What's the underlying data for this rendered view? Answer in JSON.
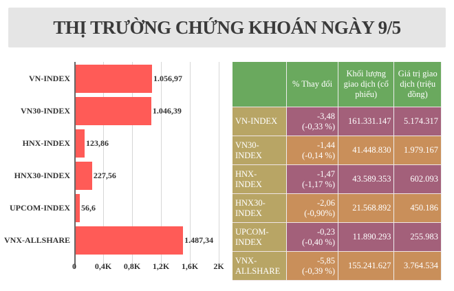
{
  "title": "THỊ TRƯỜNG CHỨNG KHOÁN NGÀY 9/5",
  "chart_data": {
    "type": "bar",
    "orientation": "horizontal",
    "categories": [
      "VN-INDEX",
      "VN30-INDEX",
      "HNX-INDEX",
      "HNX30-INDEX",
      "UPCOM-INDEX",
      "VNX-ALLSHARE"
    ],
    "values": [
      1056.97,
      1046.39,
      123.86,
      227.56,
      56.6,
      1487.34
    ],
    "value_labels": [
      "1.056,97",
      "1.046,39",
      "123,86",
      "227,56",
      "56,6",
      "1.487,34"
    ],
    "x_ticks": [
      "0",
      "0,4K",
      "0,8K",
      "1,2K",
      "1,6K",
      "2K"
    ],
    "xlim": [
      0,
      2000
    ],
    "grid": true,
    "color": "#ff5b57"
  },
  "table": {
    "headers": [
      "",
      "% Thay đổi",
      "Khối lượng giao dịch (cổ phiếu)",
      "Giá trị giao dịch (triệu đồng)"
    ],
    "rows": [
      {
        "name": "VN-INDEX",
        "chg": "-3,48",
        "pct": "(-0,33 %)",
        "vol": "161.331.147",
        "val": "5.174.317"
      },
      {
        "name": "VN30-INDEX",
        "chg": "-1,44",
        "pct": "(-0,14 %)",
        "vol": "41.448.830",
        "val": "1.979.167"
      },
      {
        "name": "HNX-INDEX",
        "chg": "-1,47",
        "pct": "(-1,17 %)",
        "vol": "43.589.353",
        "val": "602.093"
      },
      {
        "name": "HNX30-INDEX",
        "chg": "-2,06",
        "pct": "(-0,90%)",
        "vol": "21.568.892",
        "val": "450.186"
      },
      {
        "name": "UPCOM-INDEX",
        "chg": "-0,23",
        "pct": "(-0,40 %)",
        "vol": "11.890.293",
        "val": "255.983"
      },
      {
        "name": "VNX-ALLSHARE",
        "chg": "-5,85",
        "pct": "(-0,39 %)",
        "vol": "155.241.627",
        "val": "3.764.534"
      }
    ]
  }
}
